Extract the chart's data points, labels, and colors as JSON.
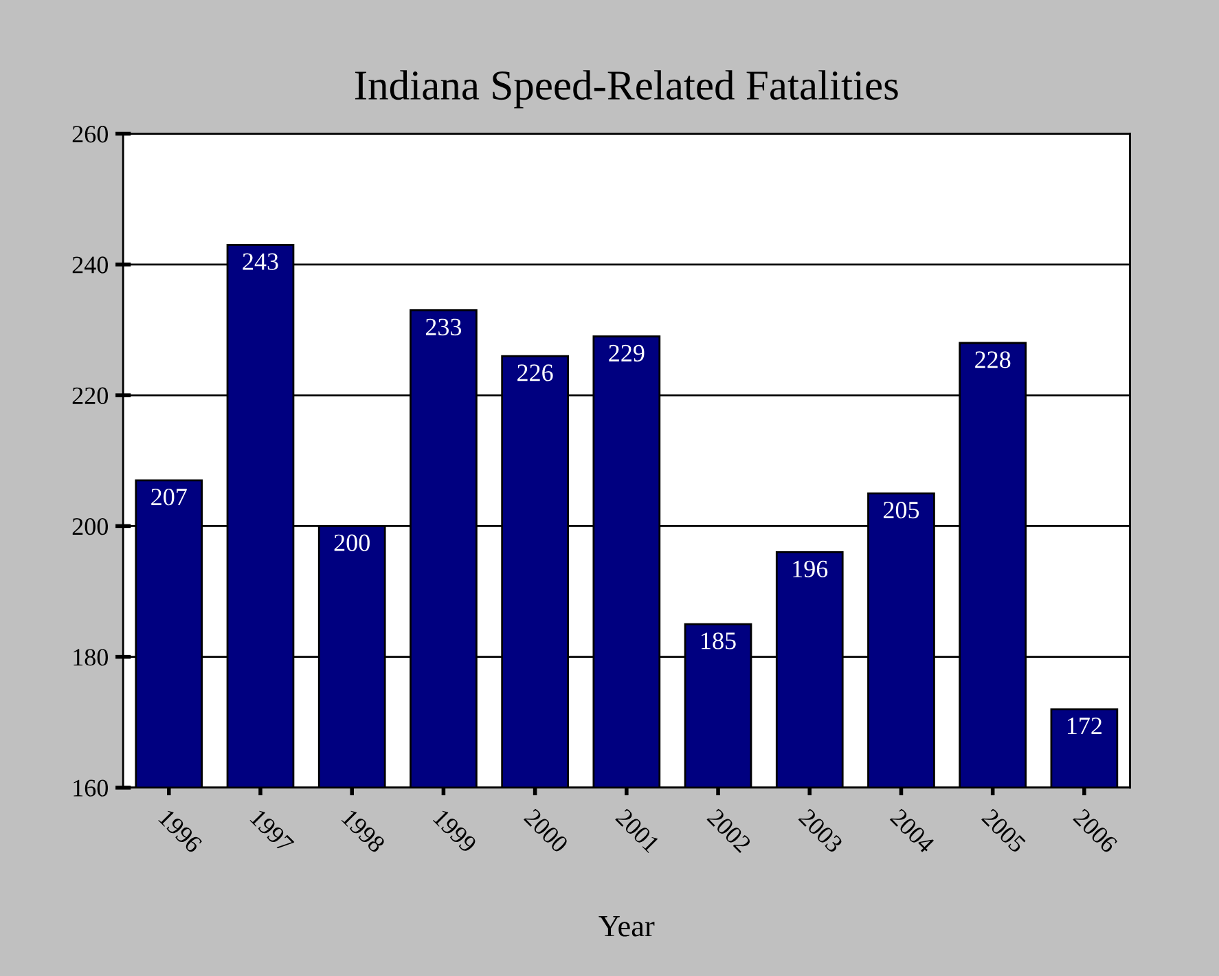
{
  "chart_data": {
    "type": "bar",
    "title": "Indiana Speed-Related Fatalities",
    "xlabel": "Year",
    "categories": [
      "1996",
      "1997",
      "1998",
      "1999",
      "2000",
      "2001",
      "2002",
      "2003",
      "2004",
      "2005",
      "2006"
    ],
    "values": [
      207,
      243,
      200,
      233,
      226,
      229,
      185,
      196,
      205,
      228,
      172
    ],
    "color": "#000080",
    "ylim": [
      160,
      260
    ],
    "yticks": [
      160,
      180,
      200,
      220,
      240,
      260
    ],
    "grid": "y",
    "data_labels": true,
    "legend": false
  }
}
